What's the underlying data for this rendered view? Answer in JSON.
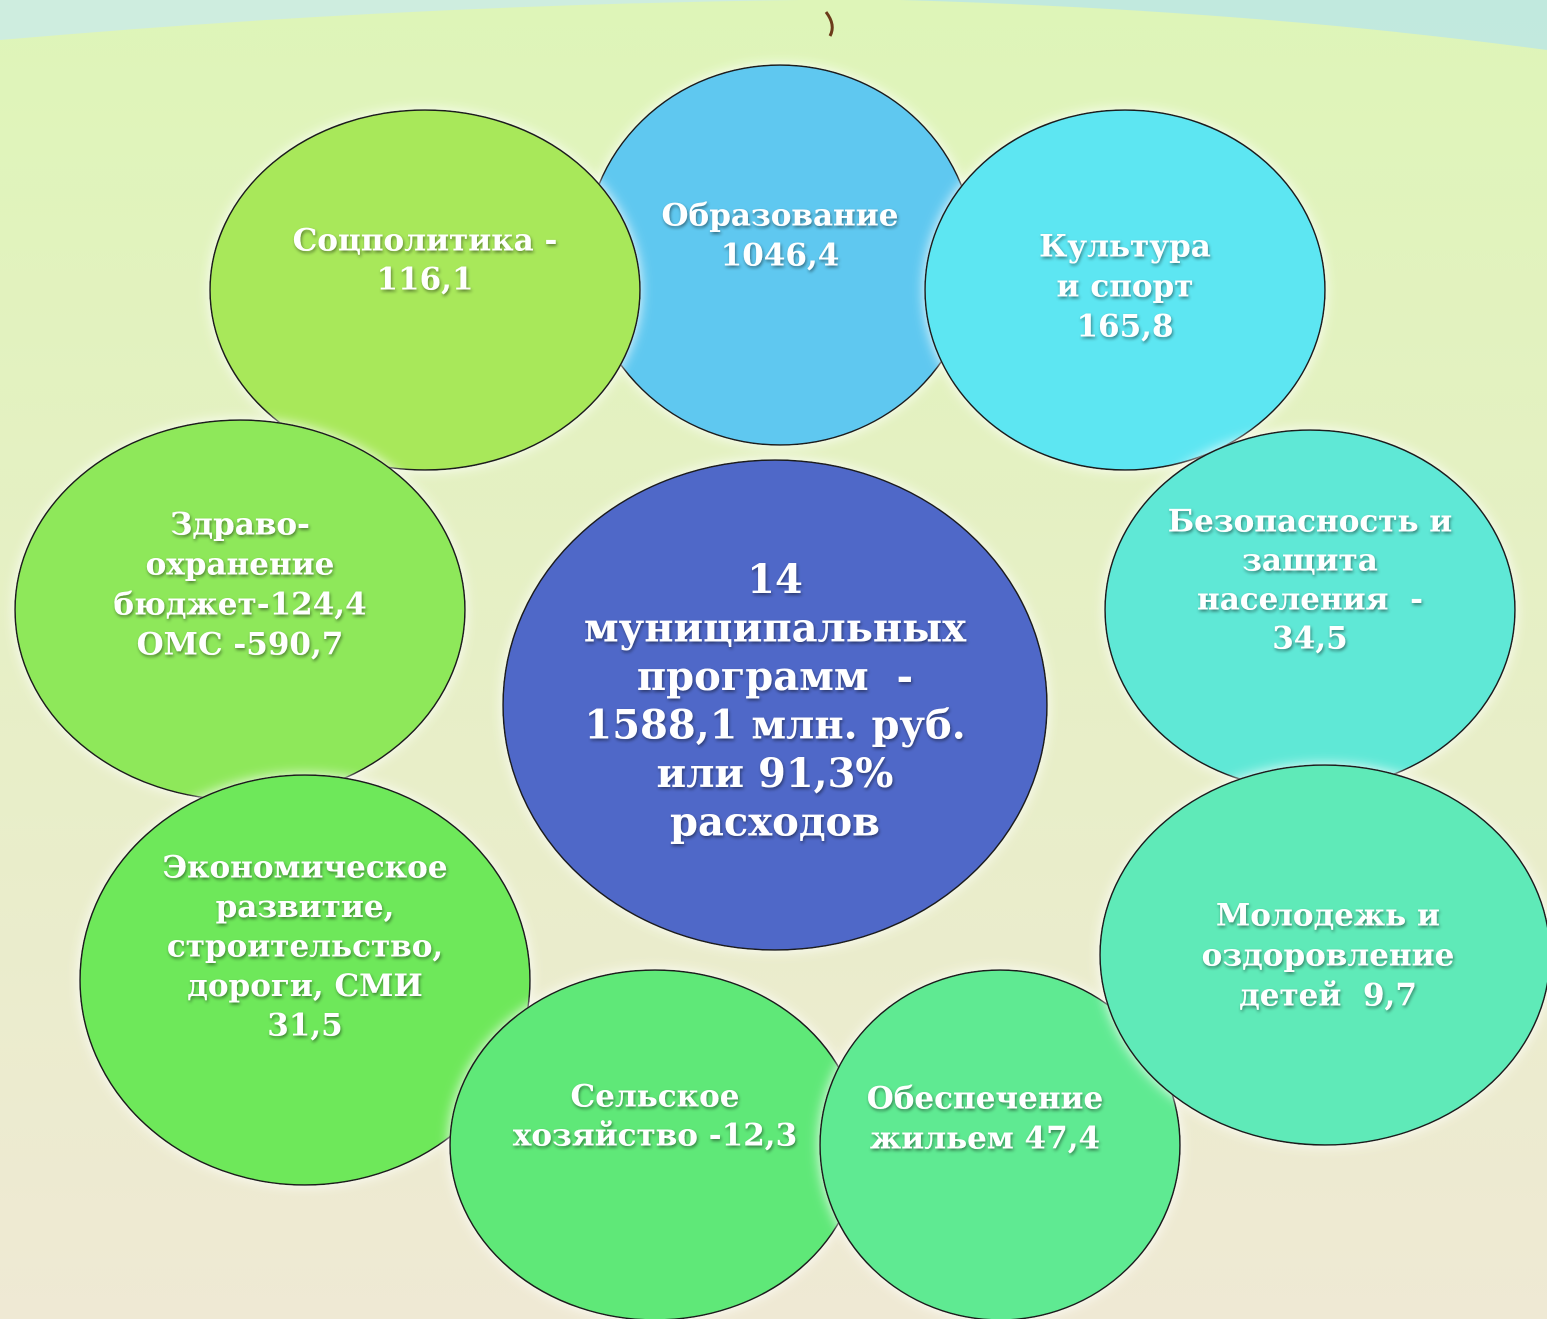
{
  "center": {
    "lines": [
      "14",
      "муниципальных",
      "программ  -",
      "1588,1 млн. руб.",
      "или 91,3%",
      "расходов"
    ]
  },
  "nodes": [
    {
      "lines": [
        "Образование",
        "1046,4"
      ]
    },
    {
      "lines": [
        "Соцполитика -",
        "116,1"
      ]
    },
    {
      "lines": [
        "Культура",
        "и спорт",
        "165,8"
      ]
    },
    {
      "lines": [
        "Безопасность и",
        "защита",
        "населения  -",
        "34,5"
      ]
    },
    {
      "lines": [
        "Здраво-",
        "охранение",
        "бюджет-124,4",
        "ОМС -590,7"
      ]
    },
    {
      "lines": [
        "Экономическое",
        "развитие,",
        "строительство,",
        "дороги, СМИ",
        "31,5"
      ]
    },
    {
      "lines": [
        "Молодежь и",
        "оздоровление",
        "детей  9,7"
      ]
    },
    {
      "lines": [
        "Сельское",
        "хозяйство -12,3"
      ]
    },
    {
      "lines": [
        "Обеспечение",
        "жильем 47,4"
      ]
    }
  ]
}
